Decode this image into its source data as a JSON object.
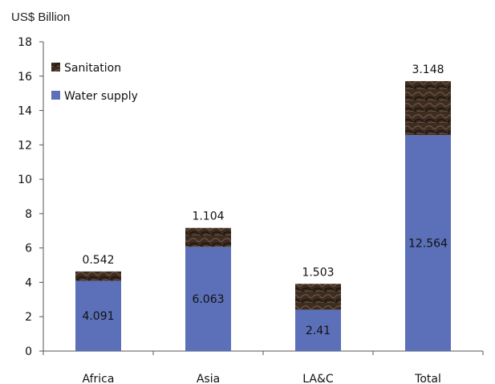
{
  "chart_data": {
    "type": "bar",
    "stacked": true,
    "unit_label": "US$ Billion",
    "categories": [
      "Africa",
      "Asia",
      "LA&C",
      "Total"
    ],
    "series": [
      {
        "name": "Water supply",
        "values": [
          4.091,
          6.063,
          2.41,
          12.564
        ],
        "labels": [
          "4.091",
          "6.063",
          "2.41",
          "12.564"
        ],
        "color": "#5b70b8"
      },
      {
        "name": "Sanitation",
        "values": [
          0.542,
          1.104,
          1.503,
          3.148
        ],
        "labels": [
          "0.542",
          "1.104",
          "1.503",
          "3.148"
        ],
        "color": "#3d2c20"
      }
    ],
    "ylim": [
      0,
      18
    ],
    "yticks": [
      0,
      2,
      4,
      6,
      8,
      10,
      12,
      14,
      16,
      18
    ],
    "grid": false,
    "legend_position": "top-left"
  }
}
